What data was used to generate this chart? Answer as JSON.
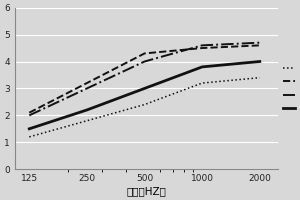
{
  "x_ticks": [
    125,
    250,
    500,
    1000,
    2000
  ],
  "x_values": [
    125,
    250,
    500,
    1000,
    2000
  ],
  "series": {
    "dotted": [
      1.2,
      1.8,
      2.4,
      3.2,
      3.4
    ],
    "solid": [
      1.5,
      2.2,
      3.0,
      3.8,
      4.0
    ],
    "dash_dot": [
      2.0,
      3.0,
      4.0,
      4.6,
      4.7
    ],
    "dashed": [
      2.1,
      3.2,
      4.3,
      4.5,
      4.6
    ]
  },
  "ylim": [
    0,
    6
  ],
  "yticks": [
    0,
    1,
    2,
    3,
    4,
    5,
    6
  ],
  "ytick_labels": [
    "0",
    "1",
    "2",
    "3",
    "4",
    "5",
    "6"
  ],
  "xlabel": "频率（HZ）",
  "background_color": "#d8d8d8",
  "plot_bg_color": "#d8d8d8",
  "line_color": "#111111",
  "grid_color": "#ffffff"
}
